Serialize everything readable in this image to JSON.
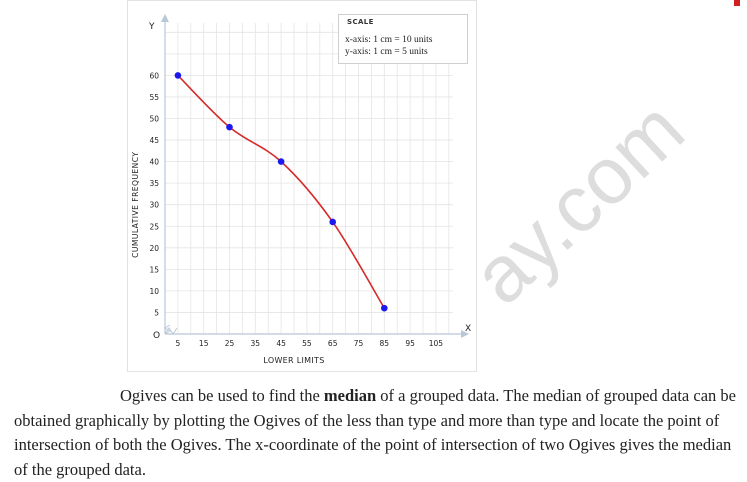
{
  "chart_data": {
    "type": "line",
    "title": "",
    "xlabel": "LOWER LIMITS",
    "ylabel": "CUMULATIVE FREQUENCY",
    "x_axis_letter": "X",
    "y_axis_letter": "Y",
    "origin_label": "O",
    "x_ticks": [
      "5",
      "15",
      "25",
      "35",
      "45",
      "55",
      "65",
      "75",
      "85",
      "95",
      "105"
    ],
    "y_ticks": [
      "5",
      "10",
      "15",
      "20",
      "25",
      "30",
      "35",
      "40",
      "45",
      "50",
      "55",
      "60"
    ],
    "xlim": [
      0,
      110
    ],
    "ylim": [
      0,
      62
    ],
    "grid": true,
    "series": [
      {
        "x": [
          5,
          25,
          45,
          65,
          85
        ],
        "y": [
          60,
          48,
          40,
          26,
          6
        ]
      }
    ],
    "colors": {
      "line": "#d42a2a",
      "point": "#1a1aee",
      "grid": "#e4e4e4",
      "axis": "#b9c8d8"
    },
    "scale": {
      "title": "SCALE",
      "x_line": "x-axis: 1 cm  =  10 units",
      "y_line": "y-axis: 1 cm  =  5 units"
    }
  },
  "text": {
    "para_prefix": "Ogives can be used to find the ",
    "para_bold": "median",
    "para_rest": " of a grouped data. The median of grouped data can be obtained graphically by plotting the Ogives of the less than type and more than type and locate the point of intersection of both the Ogives. The x-coordinate of the point of intersection of two Ogives gives the median of the grouped data."
  },
  "watermark": "ay.com"
}
